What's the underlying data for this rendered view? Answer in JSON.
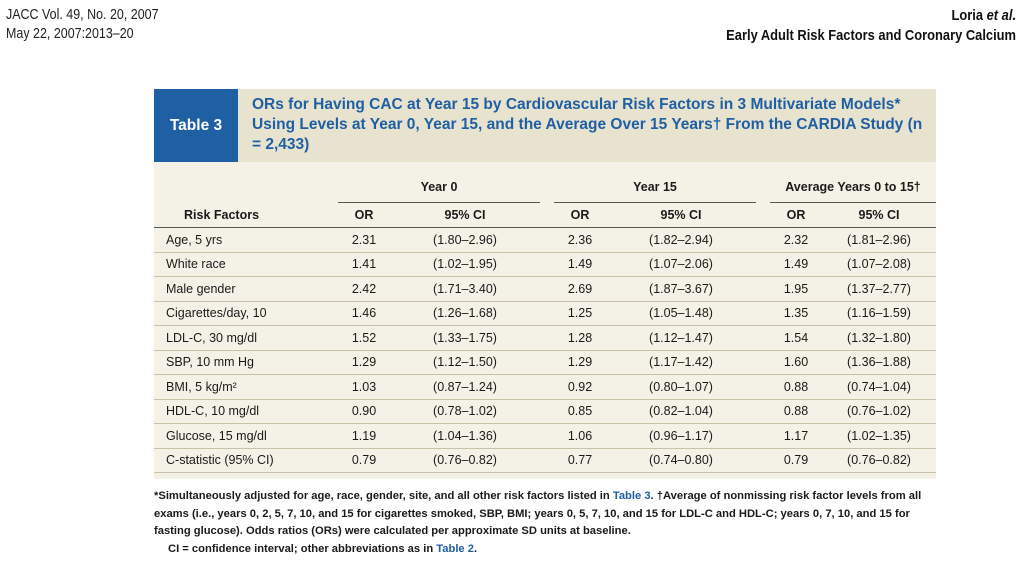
{
  "header": {
    "journal_line1": "JACC Vol. 49, No. 20, 2007",
    "journal_line2": "May 22, 2007:2013–20",
    "authors": "Loria",
    "et_al": "et al.",
    "running_title": "Early Adult Risk Factors and Coronary Calcium"
  },
  "table": {
    "label": "Table 3",
    "title": "ORs for Having CAC at Year 15 by Cardiovascular Risk Factors in 3 Multivariate Models* Using Levels at Year 0, Year 15, and the Average Over 15 Years† From the CARDIA Study (n = 2,433)",
    "groups": [
      "Year 0",
      "Year 15",
      "Average Years 0 to 15†"
    ],
    "col_risk": "Risk Factors",
    "col_or": "OR",
    "col_ci": "95% CI",
    "rows": [
      {
        "factor": "Age, 5 yrs",
        "v": [
          "2.31",
          "(1.80–2.96)",
          "2.36",
          "(1.82–2.94)",
          "2.32",
          "(1.81–2.96)"
        ]
      },
      {
        "factor": "White race",
        "v": [
          "1.41",
          "(1.02–1.95)",
          "1.49",
          "(1.07–2.06)",
          "1.49",
          "(1.07–2.08)"
        ]
      },
      {
        "factor": "Male gender",
        "v": [
          "2.42",
          "(1.71–3.40)",
          "2.69",
          "(1.87–3.67)",
          "1.95",
          "(1.37–2.77)"
        ]
      },
      {
        "factor": "Cigarettes/day, 10",
        "v": [
          "1.46",
          "(1.26–1.68)",
          "1.25",
          "(1.05–1.48)",
          "1.35",
          "(1.16–1.59)"
        ]
      },
      {
        "factor": "LDL-C, 30 mg/dl",
        "v": [
          "1.52",
          "(1.33–1.75)",
          "1.28",
          "(1.12–1.47)",
          "1.54",
          "(1.32–1.80)"
        ]
      },
      {
        "factor": "SBP, 10 mm Hg",
        "v": [
          "1.29",
          "(1.12–1.50)",
          "1.29",
          "(1.17–1.42)",
          "1.60",
          "(1.36–1.88)"
        ]
      },
      {
        "factor": "BMI, 5 kg/m²",
        "v": [
          "1.03",
          "(0.87–1.24)",
          "0.92",
          "(0.80–1.07)",
          "0.88",
          "(0.74–1.04)"
        ]
      },
      {
        "factor": "HDL-C, 10 mg/dl",
        "v": [
          "0.90",
          "(0.78–1.02)",
          "0.85",
          "(0.82–1.04)",
          "0.88",
          "(0.76–1.02)"
        ]
      },
      {
        "factor": "Glucose, 15 mg/dl",
        "v": [
          "1.19",
          "(1.04–1.36)",
          "1.06",
          "(0.96–1.17)",
          "1.17",
          "(1.02–1.35)"
        ]
      },
      {
        "factor": "C-statistic (95% CI)",
        "v": [
          "0.79",
          "(0.76–0.82)",
          "0.77",
          "(0.74–0.80)",
          "0.79",
          "(0.76–0.82)"
        ]
      }
    ]
  },
  "footnotes": {
    "note1_a": "*Simultaneously adjusted for age, race, gender, site, and all other risk factors listed in ",
    "note1_ref": "Table 3",
    "note1_b": ". †Average of nonmissing risk factor levels from all exams (i.e., years 0, 2, 5, 7, 10, and 15 for cigarettes smoked, SBP, BMI; years 0, 5, 7, 10, and 15 for LDL-C and HDL-C; years 0, 7, 10, and 15 for fasting glucose). Odds ratios (ORs) were calculated per approximate SD units at baseline.",
    "note2_a": "CI = confidence interval; other abbreviations as in ",
    "note2_ref": "Table 2",
    "note2_b": "."
  }
}
